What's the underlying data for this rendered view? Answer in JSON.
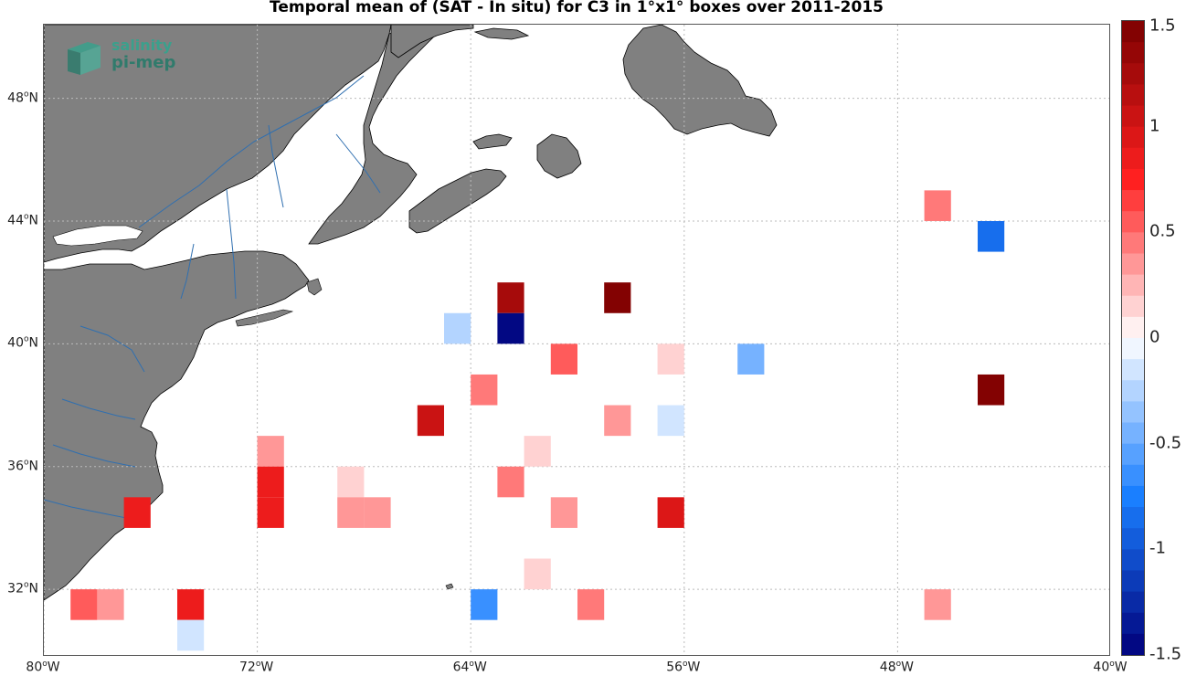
{
  "title": "Temporal mean of (SAT - In situ) for C3 in 1°x1° boxes over 2011-2015",
  "logo": {
    "line1": "salinity",
    "line2": "pi-mep"
  },
  "axes": {
    "lat_ticks": [
      {
        "value": 48,
        "deg": "48",
        "hemi": "N"
      },
      {
        "value": 44,
        "deg": "44",
        "hemi": "N"
      },
      {
        "value": 40,
        "deg": "40",
        "hemi": "N"
      },
      {
        "value": 36,
        "deg": "36",
        "hemi": "N"
      },
      {
        "value": 32,
        "deg": "32",
        "hemi": "N"
      }
    ],
    "lon_ticks": [
      {
        "value": -80,
        "deg": "80",
        "hemi": "W"
      },
      {
        "value": -72,
        "deg": "72",
        "hemi": "W"
      },
      {
        "value": -64,
        "deg": "64",
        "hemi": "W"
      },
      {
        "value": -56,
        "deg": "56",
        "hemi": "W"
      },
      {
        "value": -48,
        "deg": "48",
        "hemi": "W"
      },
      {
        "value": -40,
        "deg": "40",
        "hemi": "W"
      }
    ],
    "lon_range": [
      -80,
      -40
    ],
    "lat_range": [
      29.8,
      50.4
    ],
    "grid": true
  },
  "colorbar": {
    "range": [
      -1.5,
      1.5
    ],
    "levels": 30,
    "tick_labels": [
      "1.5",
      "1",
      "0.5",
      "0",
      "-0.5",
      "-1",
      "-1.5"
    ],
    "tick_values": [
      1.5,
      1,
      0.5,
      0,
      -0.5,
      -1,
      -1.5
    ],
    "colors": {
      "negative_end": "#00007a",
      "mid_blue": "#1a7fff",
      "zero": "#ffffff",
      "mid_red": "#ff2020",
      "positive_end": "#7a0000"
    }
  },
  "colors": {
    "land": "#808080",
    "coast": "#000000",
    "river": "#2f6fb0",
    "ocean": "#ffffff",
    "grid": "#bbbbbb"
  },
  "chart_data": {
    "type": "heatmap",
    "title": "Temporal mean of (SAT - In situ) for C3 in 1°x1° boxes over 2011-2015",
    "xlabel": "",
    "ylabel": "",
    "cells": [
      {
        "lon": -46.5,
        "lat": 44.5,
        "value": 0.45
      },
      {
        "lon": -44.5,
        "lat": 43.5,
        "value": -0.85
      },
      {
        "lon": -62.5,
        "lat": 41.5,
        "value": 1.25
      },
      {
        "lon": -58.5,
        "lat": 41.5,
        "value": 1.45
      },
      {
        "lon": -64.5,
        "lat": 40.5,
        "value": -0.25
      },
      {
        "lon": -62.5,
        "lat": 40.5,
        "value": -1.45
      },
      {
        "lon": -60.5,
        "lat": 39.5,
        "value": 0.55
      },
      {
        "lon": -56.5,
        "lat": 39.5,
        "value": 0.15
      },
      {
        "lon": -53.5,
        "lat": 39.5,
        "value": -0.45
      },
      {
        "lon": -63.5,
        "lat": 38.5,
        "value": 0.45
      },
      {
        "lon": -44.5,
        "lat": 38.5,
        "value": 1.45
      },
      {
        "lon": -65.5,
        "lat": 37.5,
        "value": 1.05
      },
      {
        "lon": -58.5,
        "lat": 37.5,
        "value": 0.3
      },
      {
        "lon": -56.5,
        "lat": 37.5,
        "value": -0.15
      },
      {
        "lon": -71.5,
        "lat": 36.5,
        "value": 0.3
      },
      {
        "lon": -61.5,
        "lat": 36.5,
        "value": 0.15
      },
      {
        "lon": -71.5,
        "lat": 35.5,
        "value": 0.85
      },
      {
        "lon": -68.5,
        "lat": 35.5,
        "value": 0.15
      },
      {
        "lon": -62.5,
        "lat": 35.5,
        "value": 0.45
      },
      {
        "lon": -76.5,
        "lat": 34.5,
        "value": 0.9
      },
      {
        "lon": -71.5,
        "lat": 34.5,
        "value": 0.85
      },
      {
        "lon": -68.5,
        "lat": 34.5,
        "value": 0.3
      },
      {
        "lon": -67.5,
        "lat": 34.5,
        "value": 0.3
      },
      {
        "lon": -60.5,
        "lat": 34.5,
        "value": 0.3
      },
      {
        "lon": -56.5,
        "lat": 34.5,
        "value": 0.95
      },
      {
        "lon": -61.5,
        "lat": 32.5,
        "value": 0.15
      },
      {
        "lon": -78.5,
        "lat": 31.5,
        "value": 0.5
      },
      {
        "lon": -77.5,
        "lat": 31.5,
        "value": 0.4
      },
      {
        "lon": -74.5,
        "lat": 31.5,
        "value": 0.9
      },
      {
        "lon": -63.5,
        "lat": 31.5,
        "value": -0.65
      },
      {
        "lon": -59.5,
        "lat": 31.5,
        "value": 0.45
      },
      {
        "lon": -46.5,
        "lat": 31.5,
        "value": 0.3
      },
      {
        "lon": -74.5,
        "lat": 30.5,
        "value": -0.15
      }
    ]
  }
}
